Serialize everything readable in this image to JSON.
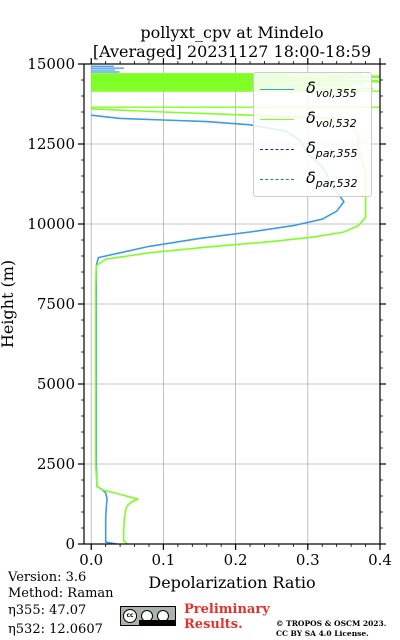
{
  "title_line1": "pollyxt_cpv at Mindelo",
  "title_line2": "[Averaged] 20231127 18:00-18:59",
  "info": {
    "version": "Version: 3.6",
    "method": "Method: Raman",
    "eta355": "η355:  47.07",
    "eta532": "η532: 12.0607"
  },
  "preliminary": [
    "Preliminary",
    "Results."
  ],
  "copyright": [
    "© TROPOS & OSCM 2023.",
    "CC BY SA 4.0 License."
  ],
  "colors": {
    "vol355": "#3d9ae6",
    "vol532": "#80ff26",
    "par355": "#2222bb",
    "par532": "#1f8a5e",
    "vol532_light": "#c7f5a8",
    "vol355_light": "#b8dcf5"
  },
  "chart_data": {
    "type": "line",
    "xlabel": "Depolarization Ratio",
    "ylabel": "Height (m)",
    "xlim": [
      -0.01,
      0.4
    ],
    "ylim": [
      0,
      15000
    ],
    "xticks": [
      0.0,
      0.1,
      0.2,
      0.3,
      0.4
    ],
    "xtick_labels": [
      "0.0",
      "0.1",
      "0.2",
      "0.3",
      "0.4"
    ],
    "yticks": [
      0,
      2500,
      5000,
      7500,
      10000,
      12500,
      15000
    ],
    "ytick_labels": [
      "0",
      "2500",
      "5000",
      "7500",
      "10000",
      "12500",
      "15000"
    ],
    "grid": true,
    "legend_position": "top-right",
    "legend": [
      {
        "base": "δ",
        "sub": "vol,355",
        "style": "solid",
        "color_key": "vol355"
      },
      {
        "base": "δ",
        "sub": "vol,532",
        "style": "solid",
        "color_key": "vol532"
      },
      {
        "base": "δ",
        "sub": "par,355",
        "style": "dashed",
        "color_key": "par355"
      },
      {
        "base": "δ",
        "sub": "par,532",
        "style": "dashed",
        "color_key": "par532"
      }
    ],
    "series": [
      {
        "name": "δvol,355",
        "points": [
          [
            0.035,
            0
          ],
          [
            0.02,
            60
          ],
          [
            0.02,
            300
          ],
          [
            0.02,
            800
          ],
          [
            0.021,
            1200
          ],
          [
            0.022,
            1400
          ],
          [
            0.02,
            1600
          ],
          [
            0.015,
            1700
          ],
          [
            0.008,
            1800
          ],
          [
            0.007,
            2500
          ],
          [
            0.007,
            4000
          ],
          [
            0.007,
            5500
          ],
          [
            0.007,
            7000
          ],
          [
            0.007,
            8000
          ],
          [
            0.007,
            8700
          ],
          [
            0.01,
            8950
          ],
          [
            0.04,
            9100
          ],
          [
            0.08,
            9300
          ],
          [
            0.15,
            9550
          ],
          [
            0.22,
            9750
          ],
          [
            0.28,
            9950
          ],
          [
            0.32,
            10150
          ],
          [
            0.34,
            10400
          ],
          [
            0.35,
            10700
          ],
          [
            0.34,
            11000
          ],
          [
            0.33,
            11400
          ],
          [
            0.32,
            11800
          ],
          [
            0.3,
            12200
          ],
          [
            0.29,
            12600
          ],
          [
            0.27,
            12900
          ],
          [
            0.22,
            13100
          ],
          [
            0.16,
            13200
          ],
          [
            0.1,
            13250
          ],
          [
            0.04,
            13300
          ],
          [
            0.0,
            13400
          ]
        ]
      },
      {
        "name": "δvol,532",
        "points": [
          [
            0.05,
            0
          ],
          [
            0.045,
            100
          ],
          [
            0.045,
            400
          ],
          [
            0.046,
            800
          ],
          [
            0.048,
            1100
          ],
          [
            0.05,
            1200
          ],
          [
            0.055,
            1300
          ],
          [
            0.065,
            1400
          ],
          [
            0.04,
            1550
          ],
          [
            0.015,
            1700
          ],
          [
            0.008,
            1800
          ],
          [
            0.006,
            2500
          ],
          [
            0.006,
            4000
          ],
          [
            0.006,
            5500
          ],
          [
            0.006,
            7000
          ],
          [
            0.006,
            8000
          ],
          [
            0.007,
            8700
          ],
          [
            0.02,
            8900
          ],
          [
            0.08,
            9100
          ],
          [
            0.17,
            9300
          ],
          [
            0.25,
            9450
          ],
          [
            0.31,
            9600
          ],
          [
            0.35,
            9750
          ],
          [
            0.37,
            9950
          ],
          [
            0.38,
            10200
          ],
          [
            0.38,
            10700
          ],
          [
            0.38,
            11200
          ],
          [
            0.38,
            11600
          ],
          [
            0.375,
            12000
          ],
          [
            0.37,
            12400
          ],
          [
            0.37,
            12800
          ],
          [
            0.36,
            13100
          ],
          [
            0.34,
            13300
          ],
          [
            0.22,
            13400
          ],
          [
            0.1,
            13500
          ],
          [
            0.0,
            13600
          ]
        ]
      }
    ],
    "upper_noise": [
      {
        "series": "δvol,532",
        "y": [
          14200,
          14700
        ]
      },
      {
        "series": "δvol,355",
        "y": [
          14750,
          14950
        ]
      }
    ]
  }
}
